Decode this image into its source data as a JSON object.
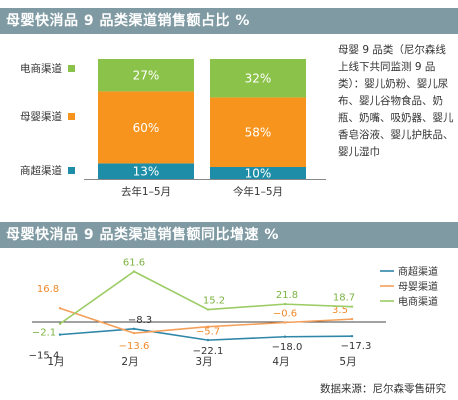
{
  "titles": {
    "top": "母婴快消品 9 品类渠道销售额占比 %",
    "bottom": "母婴快消品 9 品类渠道销售额同比增速 %"
  },
  "note": "母婴 9 品类（尼尔森线上线下共同监测 9 品类）：婴儿奶粉、婴儿尿布、婴儿谷物食品、奶瓶、奶嘴、吸奶器、婴儿香皂浴液、婴儿护肤品、婴儿湿巾",
  "source": "数据来源：尼尔森零售研究",
  "colors": {
    "电商渠道": "#8bc34a",
    "母婴渠道": "#f7941d",
    "商超渠道": "#1e8ea8",
    "line_电商渠道": "#9ccc65",
    "line_母婴渠道": "#f5a05a",
    "line_商超渠道": "#2e86a8"
  },
  "chart_data": [
    {
      "type": "bar",
      "stacked": true,
      "percent": true,
      "categories": [
        "去年1–5月",
        "今年1–5月"
      ],
      "series": [
        {
          "name": "商超渠道",
          "values": [
            13,
            10
          ],
          "labels": [
            "13%",
            "10%"
          ]
        },
        {
          "name": "母婴渠道",
          "values": [
            60,
            58
          ],
          "labels": [
            "60%",
            "58%"
          ]
        },
        {
          "name": "电商渠道",
          "values": [
            27,
            32
          ],
          "labels": [
            "27%",
            "32%"
          ]
        }
      ],
      "legend": [
        "电商渠道",
        "母婴渠道",
        "商超渠道"
      ],
      "legend_placement": "left",
      "ylim": [
        0,
        100
      ]
    },
    {
      "type": "line",
      "categories": [
        "1月",
        "2月",
        "3月",
        "4月",
        "5月"
      ],
      "series": [
        {
          "name": "商超渠道",
          "values": [
            -15.4,
            -8.3,
            -22.1,
            -18.0,
            -17.3
          ],
          "labels": [
            "−15.4",
            "−8.3",
            "−22.1",
            "−18.0",
            "−17.3"
          ]
        },
        {
          "name": "母婴渠道",
          "values": [
            16.8,
            -13.6,
            -5.7,
            -0.6,
            3.5
          ],
          "labels": [
            "16.8",
            "−13.6",
            "−5.7",
            "−0.6",
            "3.5"
          ]
        },
        {
          "name": "电商渠道",
          "values": [
            -2.1,
            61.6,
            15.2,
            21.8,
            18.7
          ],
          "labels": [
            "−2.1",
            "61.6",
            "15.2",
            "21.8",
            "18.7"
          ]
        }
      ],
      "legend": [
        "商超渠道",
        "母婴渠道",
        "电商渠道"
      ],
      "legend_placement": "right",
      "ylim": [
        -25,
        65
      ]
    }
  ]
}
